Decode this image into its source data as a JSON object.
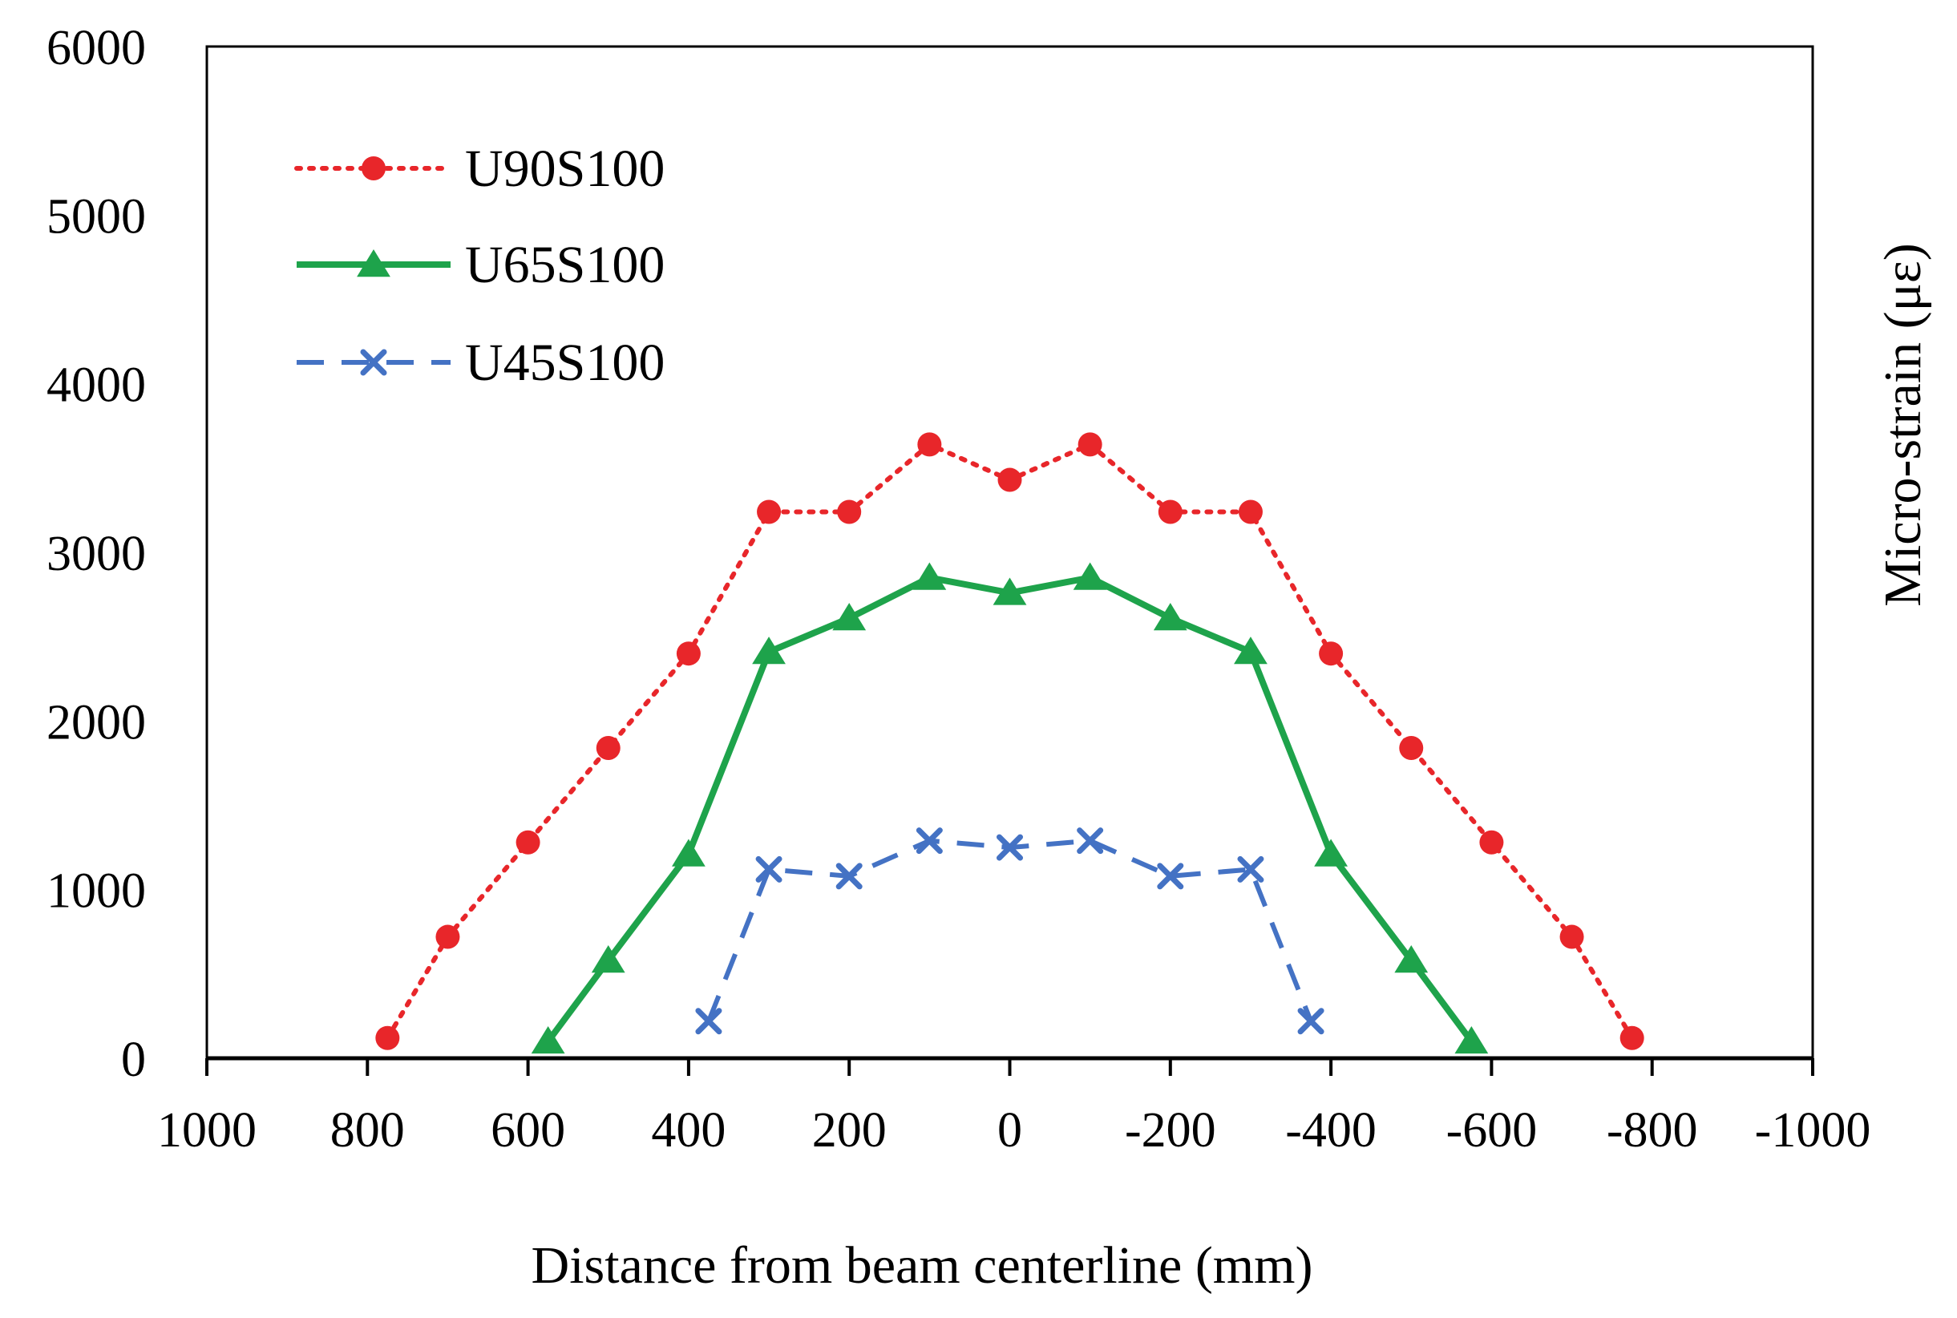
{
  "chart_data": {
    "type": "line",
    "title": "",
    "xlabel": "Distance from beam centerline (mm)",
    "ylabel": "Micro-strain (με)",
    "xlim": [
      1000,
      -1000
    ],
    "ylim": [
      0,
      6000
    ],
    "x_ticks": [
      "1000",
      "800",
      "600",
      "400",
      "200",
      "0",
      "-200",
      "-400",
      "-600",
      "-800",
      "-1000"
    ],
    "y_ticks": [
      "0",
      "1000",
      "2000",
      "3000",
      "4000",
      "5000",
      "6000"
    ],
    "grid": false,
    "legend_position": "top-left",
    "series": [
      {
        "name": "U90S100",
        "color": "#e8262a",
        "line_style": "dotted",
        "marker": "circle",
        "x": [
          775,
          700,
          600,
          500,
          400,
          300,
          200,
          100,
          0,
          -100,
          -200,
          -300,
          -400,
          -500,
          -600,
          -700,
          -775
        ],
        "y": [
          120,
          720,
          1280,
          1840,
          2400,
          3240,
          3240,
          3640,
          3430,
          3640,
          3240,
          3240,
          2400,
          1840,
          1280,
          720,
          120
        ]
      },
      {
        "name": "U65S100",
        "color": "#1ea34b",
        "line_style": "solid",
        "marker": "triangle",
        "x": [
          575,
          500,
          400,
          300,
          200,
          100,
          0,
          -100,
          -200,
          -300,
          -400,
          -500,
          -575
        ],
        "y": [
          100,
          580,
          1210,
          2410,
          2610,
          2850,
          2760,
          2850,
          2610,
          2410,
          1210,
          580,
          100
        ]
      },
      {
        "name": "U45S100",
        "color": "#4472c4",
        "line_style": "dashed",
        "marker": "x",
        "x": [
          375,
          300,
          200,
          100,
          0,
          -100,
          -200,
          -300,
          -375
        ],
        "y": [
          220,
          1120,
          1080,
          1290,
          1250,
          1290,
          1080,
          1120,
          220
        ]
      }
    ]
  }
}
